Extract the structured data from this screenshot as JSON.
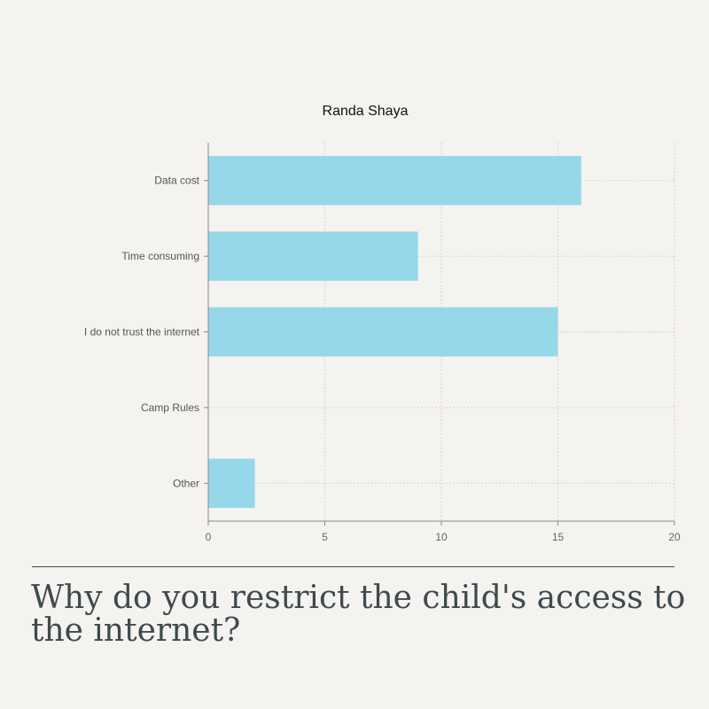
{
  "chart_data": {
    "type": "bar",
    "orientation": "horizontal",
    "title": "Randa Shaya",
    "categories": [
      "Data cost",
      "Time consuming",
      "I do not trust the internet",
      "Camp Rules",
      "Other"
    ],
    "values": [
      16,
      9,
      15,
      0,
      2
    ],
    "xlim": [
      0,
      20
    ],
    "x_ticks": [
      0,
      5,
      10,
      15,
      20
    ],
    "grid": true,
    "colors": {
      "bar": "#97d7ea",
      "grid": "#d6d3cd",
      "axis": "#888888"
    }
  },
  "question": "Why do you restrict the child's access to the internet?"
}
